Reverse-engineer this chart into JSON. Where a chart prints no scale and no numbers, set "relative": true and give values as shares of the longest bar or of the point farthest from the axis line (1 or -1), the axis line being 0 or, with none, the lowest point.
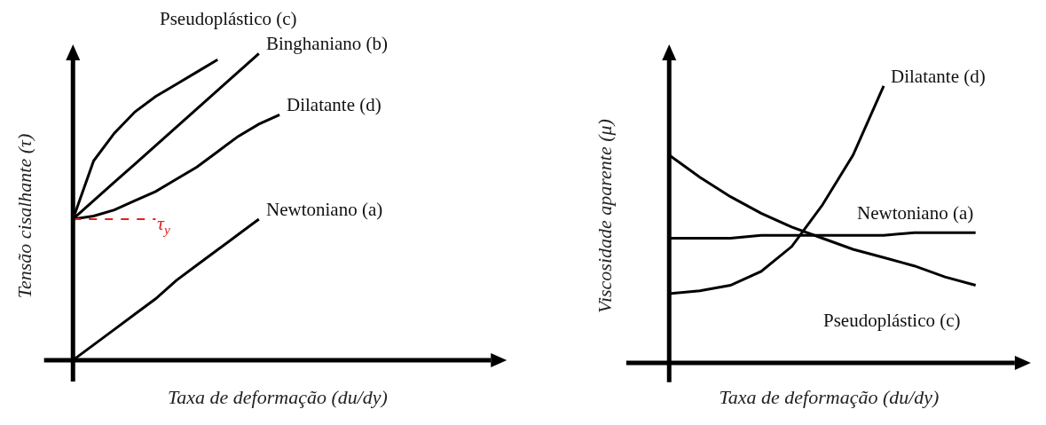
{
  "chart_data": [
    {
      "type": "line",
      "relative": true,
      "xlabel": "Taxa de deformação (du/dy)",
      "ylabel": "Tensão cisalhante (τ)",
      "grid": false,
      "legend": false,
      "marker": "none",
      "line_style": "solid",
      "categories": [
        null,
        null,
        null,
        null,
        null,
        null,
        null,
        null,
        null,
        null,
        null
      ],
      "series": [
        {
          "name": "Pseudoplástico (c)",
          "color": "#000000",
          "values": [
            0.46,
            0.65,
            0.74,
            0.81,
            0.86,
            0.9,
            0.94,
            0.98,
            null,
            null,
            null
          ]
        },
        {
          "name": "Binghaniano (b)",
          "color": "#000000",
          "values": [
            0.46,
            0.52,
            0.58,
            0.64,
            0.7,
            0.76,
            0.82,
            0.88,
            0.94,
            1.0,
            null
          ]
        },
        {
          "name": "Dilatante (d)",
          "color": "#000000",
          "values": [
            0.46,
            0.47,
            0.49,
            0.52,
            0.55,
            0.59,
            0.63,
            0.68,
            0.73,
            0.77,
            0.8
          ]
        },
        {
          "name": "Newtoniano (a)",
          "color": "#000000",
          "values": [
            0,
            0.05,
            0.1,
            0.15,
            0.2,
            0.26,
            0.31,
            0.36,
            0.41,
            0.46,
            null
          ]
        }
      ],
      "ref_lines": [
        {
          "axis": "y",
          "value": 0.46,
          "label": "τ$_{y}$",
          "color": "#e02020",
          "line_style": "dashed"
        }
      ]
    },
    {
      "type": "line",
      "relative": true,
      "xlabel": "Taxa de deformação (du/dy)",
      "ylabel": "Viscosidade aparente (μ)",
      "grid": false,
      "legend": false,
      "marker": "none",
      "line_style": "solid",
      "categories": [
        null,
        null,
        null,
        null,
        null,
        null,
        null,
        null,
        null,
        null,
        null
      ],
      "series": [
        {
          "name": "Dilatante (d)",
          "color": "#000000",
          "values": [
            0.25,
            0.26,
            0.28,
            0.33,
            0.42,
            0.57,
            0.75,
            1.0,
            null,
            null,
            null
          ]
        },
        {
          "name": "Newtoniano (a)",
          "color": "#000000",
          "values": [
            0.45,
            0.45,
            0.45,
            0.46,
            0.46,
            0.46,
            0.46,
            0.46,
            0.47,
            0.47,
            0.47
          ]
        },
        {
          "name": "Pseudoplástico (c)",
          "color": "#000000",
          "values": [
            0.75,
            0.67,
            0.6,
            0.54,
            0.49,
            0.45,
            0.41,
            0.38,
            0.35,
            0.31,
            0.28
          ]
        }
      ]
    }
  ]
}
